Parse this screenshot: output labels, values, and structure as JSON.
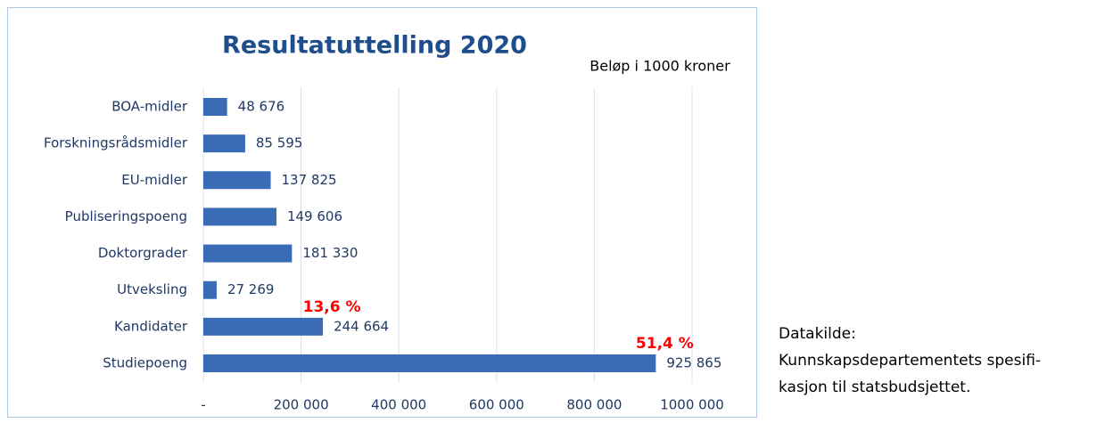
{
  "chart_data": {
    "type": "hbar",
    "title": "Resultatuttelling 2020",
    "unit_note": "Beløp i 1000 kroner",
    "categories": [
      "BOA-midler",
      "Forskningsrådsmidler",
      "EU-midler",
      "Publiseringspoeng",
      "Doktorgrader",
      "Utveksling",
      "Kandidater",
      "Studiepoeng"
    ],
    "values": [
      48676,
      85595,
      137825,
      149606,
      181330,
      27269,
      244664,
      925865
    ],
    "value_labels": [
      "48 676",
      "85 595",
      "137 825",
      "149 606",
      "181 330",
      "27 269",
      "244 664",
      "925 865"
    ],
    "percent_labels": [
      null,
      null,
      null,
      null,
      null,
      null,
      "13,6 %",
      "51,4 %"
    ],
    "color": "#3a6cb5",
    "xlim": [
      0,
      1000000
    ],
    "xticks": [
      {
        "value": 0,
        "label": "-"
      },
      {
        "value": 200000,
        "label": "200 000"
      },
      {
        "value": 400000,
        "label": "400 000"
      },
      {
        "value": 600000,
        "label": "600 000"
      },
      {
        "value": 800000,
        "label": "800 000"
      },
      {
        "value": 1000000,
        "label": "1000 000"
      }
    ],
    "grid": true,
    "source": [
      "Datakilde:",
      "Kunnskapsdepartementets spesifi-",
      "kasjon til statsbudsjettet."
    ]
  }
}
